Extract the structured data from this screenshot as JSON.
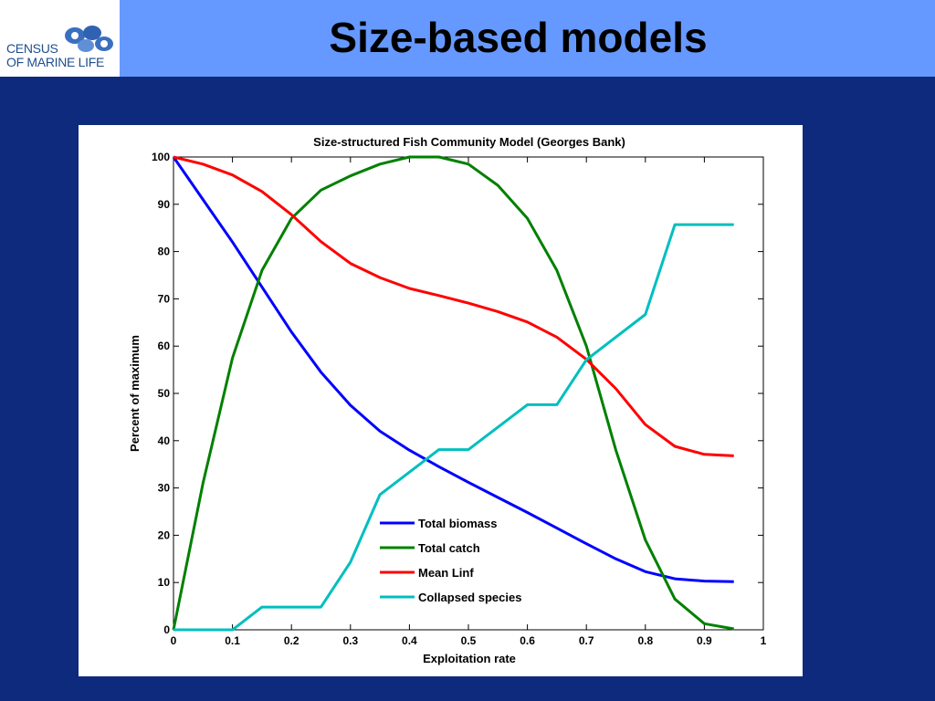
{
  "header": {
    "title": "Size-based models",
    "logo_line1": "CENSUS",
    "logo_line2": "OF MARINE LIFE",
    "bar_color": "#6699ff",
    "background_color": "#0e2a7c"
  },
  "chart_data": {
    "type": "line",
    "title": "Size-structured Fish Community Model (Georges Bank)",
    "xlabel": "Exploitation rate",
    "ylabel": "Percent of maximum",
    "xlim": [
      0,
      1
    ],
    "ylim": [
      0,
      100
    ],
    "xticks": [
      "0",
      "0.1",
      "0.2",
      "0.3",
      "0.4",
      "0.5",
      "0.6",
      "0.7",
      "0.8",
      "0.9",
      "1"
    ],
    "yticks": [
      "0",
      "10",
      "20",
      "30",
      "40",
      "50",
      "60",
      "70",
      "80",
      "90",
      "100"
    ],
    "grid": false,
    "legend_position": "bottom-center",
    "x": [
      0,
      0.05,
      0.1,
      0.15,
      0.2,
      0.25,
      0.3,
      0.35,
      0.4,
      0.45,
      0.5,
      0.55,
      0.6,
      0.65,
      0.7,
      0.75,
      0.8,
      0.85,
      0.9,
      0.95
    ],
    "series": [
      {
        "name": "Total biomass",
        "color": "#0000ff",
        "values": [
          100,
          91,
          82,
          72.5,
          63,
          54.5,
          47.5,
          42,
          38,
          34.5,
          31.2,
          28,
          24.8,
          21.5,
          18.2,
          15,
          12.3,
          10.8,
          10.3,
          10.2
        ]
      },
      {
        "name": "Total catch",
        "color": "#008000",
        "values": [
          0,
          31,
          57.5,
          76,
          87,
          93,
          96,
          98.5,
          100,
          100,
          98.5,
          94,
          87,
          76,
          60,
          38,
          19,
          6.5,
          1.3,
          0.2
        ]
      },
      {
        "name": "Mean Linf",
        "color": "#ff0000",
        "values": [
          100,
          98.5,
          96.2,
          92.7,
          87.8,
          82.1,
          77.5,
          74.5,
          72.2,
          70.7,
          69.1,
          67.3,
          65.1,
          61.9,
          57.2,
          51,
          43.4,
          38.8,
          37.1,
          36.8
        ]
      },
      {
        "name": "Collapsed species",
        "color": "#00bfbf",
        "x": [
          0,
          0.1,
          0.15,
          0.25,
          0.3,
          0.35,
          0.45,
          0.5,
          0.6,
          0.65,
          0.7,
          0.8,
          0.85,
          0.95
        ],
        "values": [
          0,
          0,
          4.8,
          4.8,
          14.3,
          28.6,
          38.1,
          38.1,
          47.6,
          47.6,
          57.1,
          66.7,
          85.7,
          85.7
        ]
      }
    ]
  }
}
